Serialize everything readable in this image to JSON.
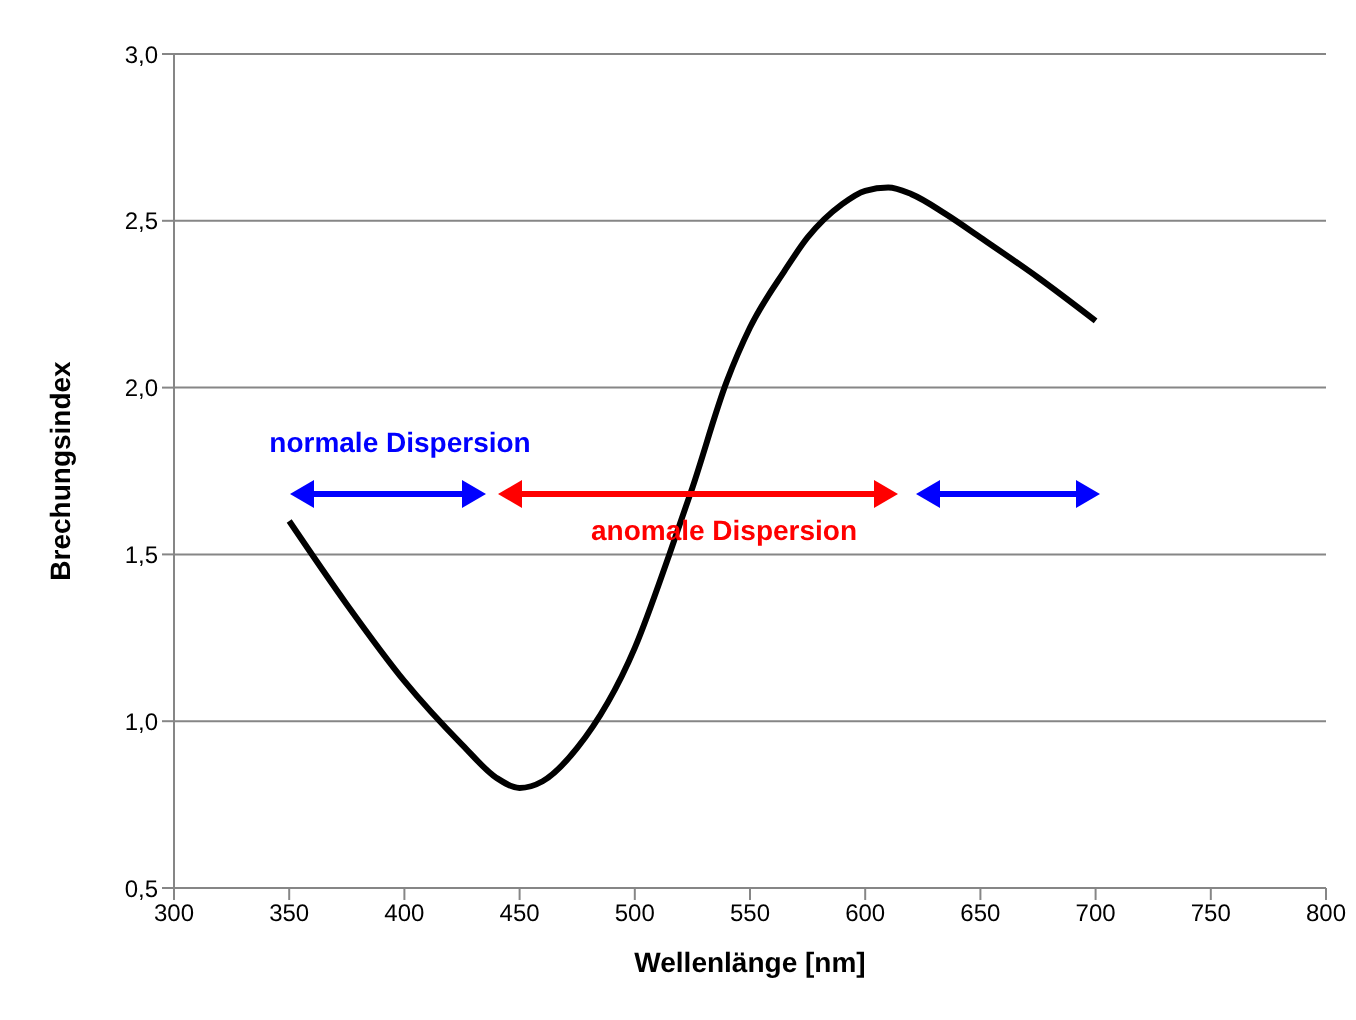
{
  "chart_data": {
    "type": "line",
    "xlabel": "Wellenlänge [nm]",
    "ylabel": "Brechungsindex",
    "x": [
      350,
      375,
      400,
      425,
      440,
      450,
      460,
      475,
      500,
      515,
      525,
      540,
      550,
      565,
      575,
      590,
      600,
      610,
      620,
      635,
      650,
      675,
      700
    ],
    "series": [
      {
        "color": "#000000",
        "values": [
          1.6,
          1.35,
          1.12,
          0.93,
          0.83,
          0.8,
          0.82,
          0.92,
          1.22,
          1.5,
          1.7,
          2.02,
          2.18,
          2.35,
          2.45,
          2.55,
          2.59,
          2.6,
          2.58,
          2.52,
          2.45,
          2.33,
          2.2
        ]
      }
    ],
    "xlim": [
      300,
      800
    ],
    "xticks": [
      300,
      350,
      400,
      450,
      500,
      550,
      600,
      650,
      700,
      750,
      800
    ],
    "ylim": [
      0.5,
      3.0
    ],
    "yticks": [
      {
        "value": 0.5,
        "label": "0,5"
      },
      {
        "value": 1.0,
        "label": "1,0"
      },
      {
        "value": 1.5,
        "label": "1,5"
      },
      {
        "value": 2.0,
        "label": "2,0"
      },
      {
        "value": 2.5,
        "label": "2,5"
      },
      {
        "value": 3.0,
        "label": "3,0"
      }
    ],
    "grid": "y",
    "marker": "none",
    "line_style": "solid",
    "legend": false,
    "annotations": [
      "normale Dispersion",
      "anomale Dispersion"
    ]
  }
}
